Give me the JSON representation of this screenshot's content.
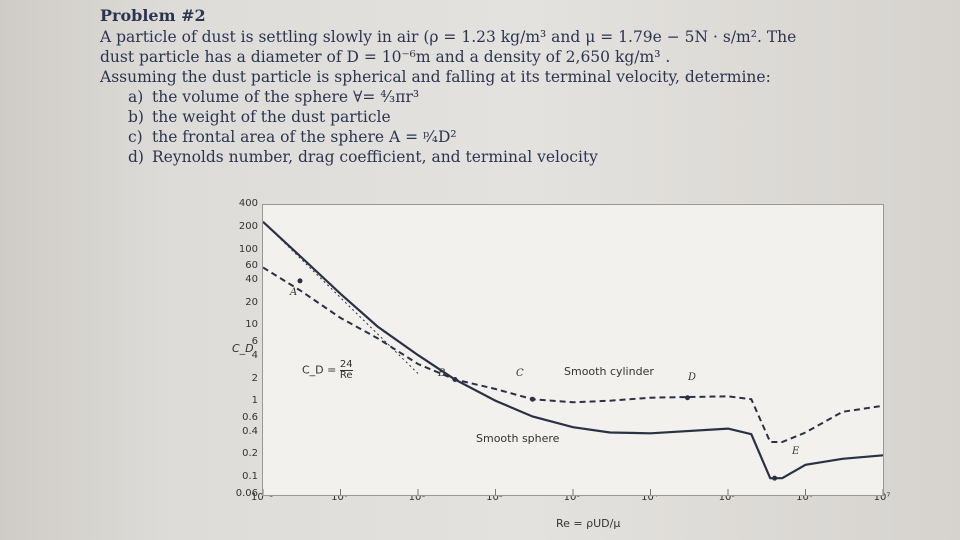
{
  "problem": {
    "title": "Problem #2",
    "line1": "A particle of dust is settling slowly in air (ρ = 1.23 kg/m³ and μ = 1.79e − 5N · s/m². The",
    "line2": "dust particle has a diameter of D = 10⁻⁶m and a density of 2,650 kg/m³ .",
    "line3": "Assuming the dust particle is spherical and falling at its terminal velocity, determine:",
    "items": [
      {
        "label": "a)",
        "text": "the volume of the sphere ∀= ⁴⁄₃πr³"
      },
      {
        "label": "b)",
        "text": "the weight of the dust particle"
      },
      {
        "label": "c)",
        "text": "the frontal area of the sphere A = ᵖ⁄₄D²"
      },
      {
        "label": "d)",
        "text": "Reynolds number, drag coefficient, and terminal velocity"
      }
    ]
  },
  "chart_data": {
    "type": "line",
    "xscale": "log",
    "yscale": "log",
    "xlim": [
      0.1,
      10000000
    ],
    "ylim": [
      0.06,
      400
    ],
    "xticks": [
      "10⁻¹",
      "10⁰",
      "10¹",
      "10²",
      "10³",
      "10⁴",
      "10⁵",
      "10⁶",
      "10⁷"
    ],
    "yticks": [
      "400",
      "200",
      "100",
      "60",
      "40",
      "20",
      "10",
      "6",
      "4",
      "2",
      "1",
      "0.6",
      "0.4",
      "0.2",
      "0.1",
      "0.06"
    ],
    "ylabel": "C_D",
    "xlabel": "Re = ρUD/μ",
    "formula": {
      "lhs": "C_D =",
      "num": "24",
      "den": "Re"
    },
    "curve_labels": {
      "cylinder": "Smooth cylinder",
      "sphere": "Smooth sphere"
    },
    "points": [
      "A",
      "B",
      "C",
      "D",
      "E"
    ],
    "series": [
      {
        "name": "Smooth sphere",
        "style": "solid",
        "points": [
          [
            0.1,
            240
          ],
          [
            0.3,
            85
          ],
          [
            1,
            27
          ],
          [
            3,
            10
          ],
          [
            10,
            4.2
          ],
          [
            30,
            2.0
          ],
          [
            100,
            1.05
          ],
          [
            300,
            0.65
          ],
          [
            1000,
            0.47
          ],
          [
            3000,
            0.4
          ],
          [
            10000,
            0.39
          ],
          [
            100000,
            0.45
          ],
          [
            200000,
            0.38
          ],
          [
            350000,
            0.1
          ],
          [
            500000,
            0.1
          ],
          [
            1000000,
            0.15
          ],
          [
            3000000,
            0.18
          ],
          [
            10000000,
            0.2
          ]
        ]
      },
      {
        "name": "Smooth cylinder",
        "style": "dashed",
        "points": [
          [
            0.1,
            60
          ],
          [
            0.3,
            30
          ],
          [
            1,
            13
          ],
          [
            3,
            7
          ],
          [
            10,
            3.2
          ],
          [
            30,
            2.0
          ],
          [
            100,
            1.5
          ],
          [
            300,
            1.1
          ],
          [
            1000,
            1.0
          ],
          [
            3000,
            1.05
          ],
          [
            10000,
            1.15
          ],
          [
            100000,
            1.2
          ],
          [
            200000,
            1.1
          ],
          [
            350000,
            0.3
          ],
          [
            500000,
            0.3
          ],
          [
            1000000,
            0.4
          ],
          [
            3000000,
            0.75
          ],
          [
            10000000,
            0.9
          ]
        ]
      },
      {
        "name": "Stokes",
        "style": "dotted",
        "points": [
          [
            0.1,
            240
          ],
          [
            10,
            2.4
          ]
        ]
      }
    ]
  },
  "colors": {
    "ink": "#2c3550",
    "curve": "#2a3142",
    "page": "#e4e2de"
  }
}
